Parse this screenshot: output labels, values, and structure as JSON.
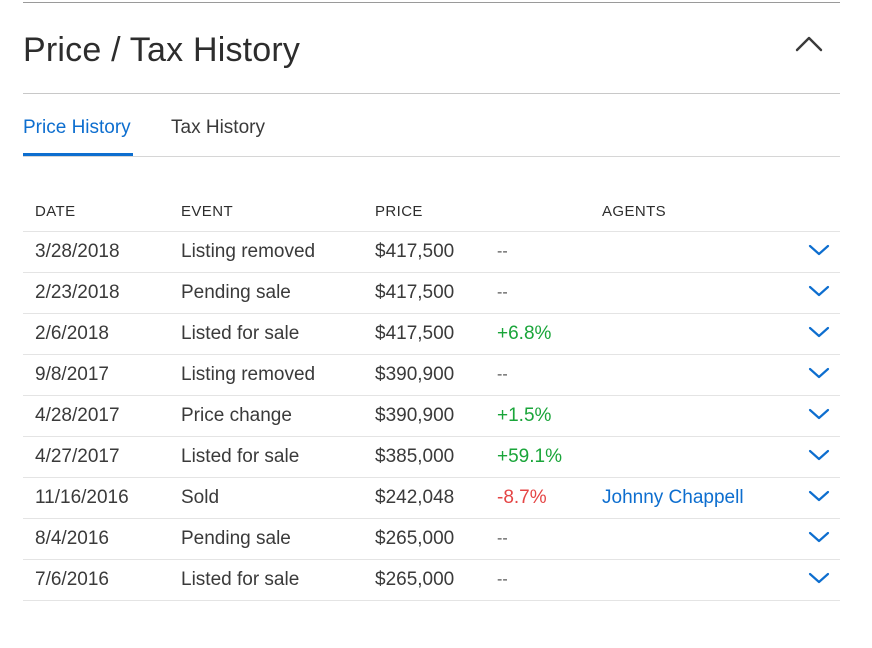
{
  "section": {
    "title": "Price / Tax History"
  },
  "tabs": [
    {
      "label": "Price History",
      "active": true
    },
    {
      "label": "Tax History",
      "active": false
    }
  ],
  "table": {
    "headers": [
      "DATE",
      "EVENT",
      "PRICE",
      "",
      "AGENTS"
    ],
    "rows": [
      {
        "date": "3/28/2018",
        "event": "Listing removed",
        "price": "$417,500",
        "change": "--",
        "agent": ""
      },
      {
        "date": "2/23/2018",
        "event": "Pending sale",
        "price": "$417,500",
        "change": "--",
        "agent": ""
      },
      {
        "date": "2/6/2018",
        "event": "Listed for sale",
        "price": "$417,500",
        "change": "+6.8%",
        "agent": ""
      },
      {
        "date": "9/8/2017",
        "event": "Listing removed",
        "price": "$390,900",
        "change": "--",
        "agent": ""
      },
      {
        "date": "4/28/2017",
        "event": "Price change",
        "price": "$390,900",
        "change": "+1.5%",
        "agent": ""
      },
      {
        "date": "4/27/2017",
        "event": "Listed for sale",
        "price": "$385,000",
        "change": "+59.1%",
        "agent": ""
      },
      {
        "date": "11/16/2016",
        "event": "Sold",
        "price": "$242,048",
        "change": "-8.7%",
        "agent": "Johnny Chappell"
      },
      {
        "date": "8/4/2016",
        "event": "Pending sale",
        "price": "$265,000",
        "change": "--",
        "agent": ""
      },
      {
        "date": "7/6/2016",
        "event": "Listed for sale",
        "price": "$265,000",
        "change": "--",
        "agent": ""
      }
    ]
  },
  "colors": {
    "accent": "#0d6ecf",
    "positive": "#1aa53a",
    "negative": "#e54545"
  },
  "icons": {
    "collapse": "chevron-up-icon",
    "row_expand": "chevron-down-icon"
  }
}
